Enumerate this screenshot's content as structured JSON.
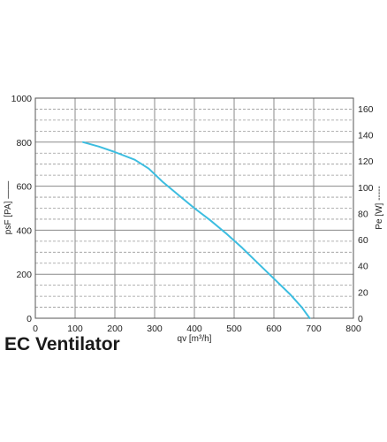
{
  "chart_data": {
    "type": "line",
    "title": "EC Ventilator",
    "xlabel": "qv [m³/h]",
    "ylabel": "psF [PA] ——",
    "ylabel_right": "Pe [W] -----",
    "xlim": [
      0,
      800
    ],
    "ylim": [
      0,
      1000
    ],
    "ylim_right": [
      0,
      168
    ],
    "x_ticks": [
      "0",
      "100",
      "200",
      "300",
      "400",
      "500",
      "600",
      "700",
      "800"
    ],
    "y_ticks": [
      "0",
      "200",
      "400",
      "600",
      "800",
      "1000"
    ],
    "y_ticks_right": [
      "0",
      "20",
      "40",
      "60",
      "80",
      "100",
      "120",
      "140",
      "160"
    ],
    "grid": true,
    "colors": {
      "curve": "#3cbde0",
      "grid_major": "#8a8a8a",
      "grid_minor": "#9a9a9a",
      "frame": "#555555"
    },
    "series": [
      {
        "axis": "left",
        "x": [
          120,
          160,
          200,
          250,
          285,
          320,
          360,
          400,
          440,
          480,
          520,
          560,
          600,
          640,
          670,
          690
        ],
        "y": [
          800,
          780,
          755,
          720,
          680,
          620,
          560,
          500,
          445,
          385,
          320,
          250,
          180,
          110,
          50,
          0
        ]
      }
    ]
  }
}
